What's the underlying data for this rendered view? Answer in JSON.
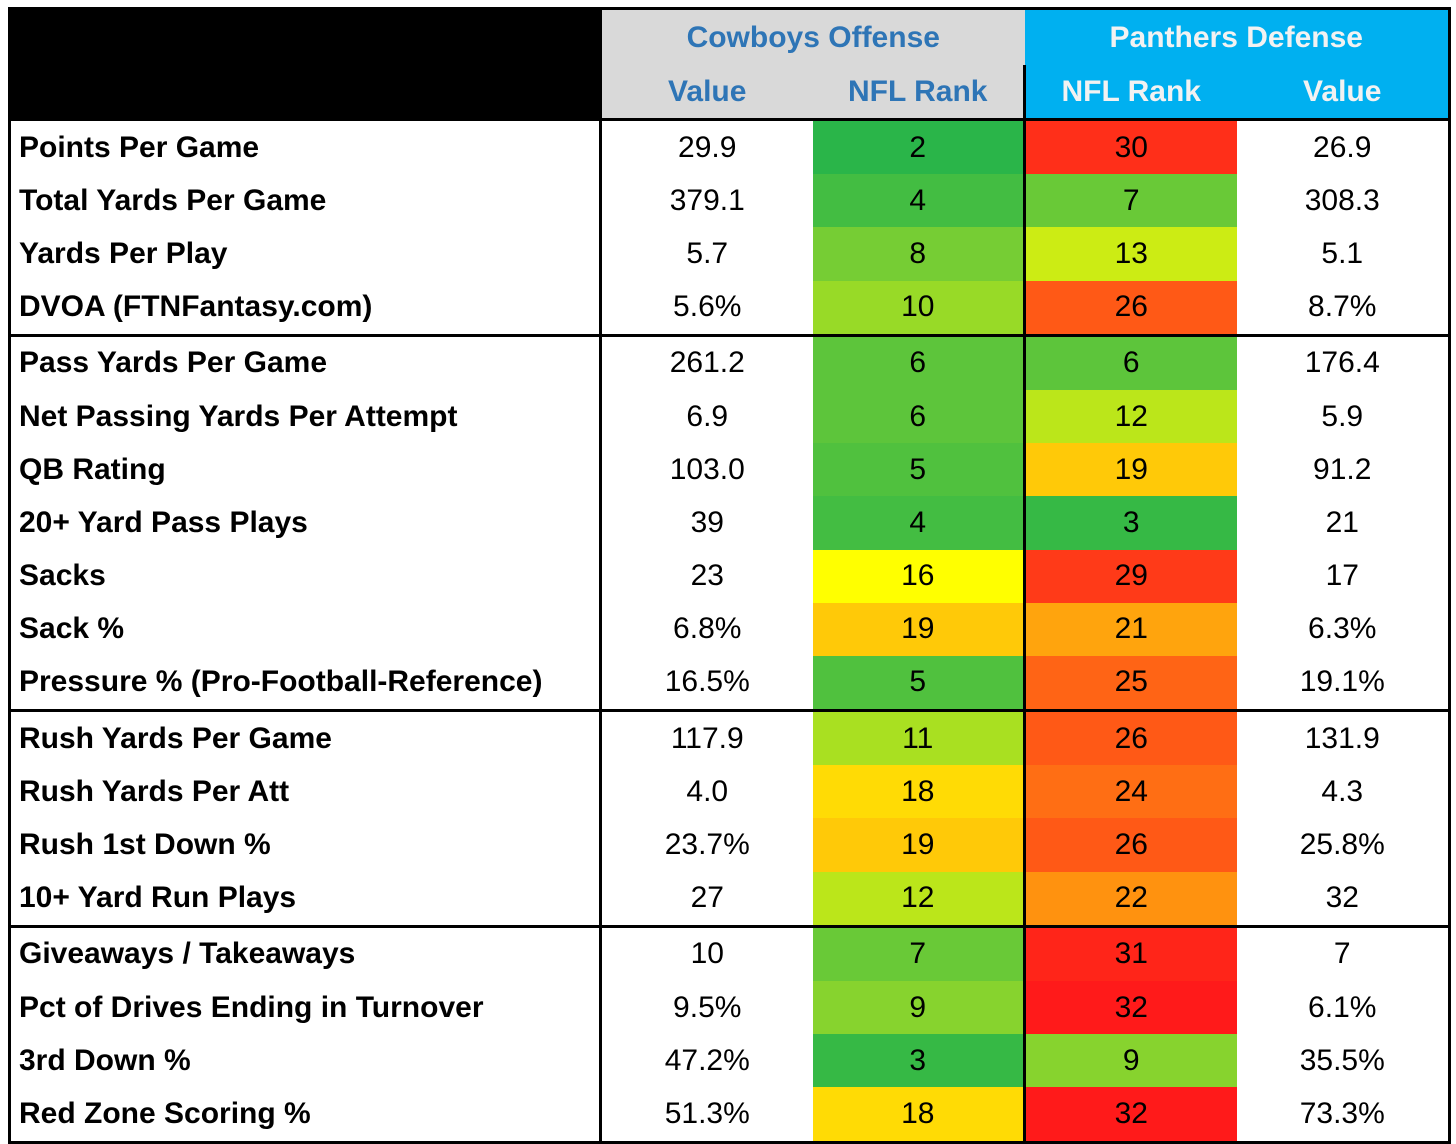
{
  "header": {
    "offense_title": "Cowboys Offense",
    "defense_title": "Panthers Defense",
    "offense_value_label": "Value",
    "offense_rank_label": "NFL Rank",
    "defense_rank_label": "NFL Rank",
    "defense_value_label": "Value"
  },
  "colors": {
    "header_gray": "#d9d9d9",
    "header_cyan": "#00b0f0",
    "header_blue_text": "#2e75b6",
    "rank_scale_best": "#1db14c",
    "rank_scale_mid": "#ffff00",
    "rank_scale_worst": "#ff1a1a"
  },
  "sections": [
    {
      "rows": [
        {
          "stat": "Points Per Game",
          "off_value": "29.9",
          "off_rank": "2",
          "def_rank": "30",
          "def_value": "26.9"
        },
        {
          "stat": "Total Yards Per Game",
          "off_value": "379.1",
          "off_rank": "4",
          "def_rank": "7",
          "def_value": "308.3"
        },
        {
          "stat": "Yards Per Play",
          "off_value": "5.7",
          "off_rank": "8",
          "def_rank": "13",
          "def_value": "5.1"
        },
        {
          "stat": "DVOA (FTNFantasy.com)",
          "off_value": "5.6%",
          "off_rank": "10",
          "def_rank": "26",
          "def_value": "8.7%"
        }
      ]
    },
    {
      "rows": [
        {
          "stat": "Pass Yards Per Game",
          "off_value": "261.2",
          "off_rank": "6",
          "def_rank": "6",
          "def_value": "176.4"
        },
        {
          "stat": "Net Passing Yards Per Attempt",
          "off_value": "6.9",
          "off_rank": "6",
          "def_rank": "12",
          "def_value": "5.9"
        },
        {
          "stat": "QB Rating",
          "off_value": "103.0",
          "off_rank": "5",
          "def_rank": "19",
          "def_value": "91.2"
        },
        {
          "stat": "20+ Yard Pass Plays",
          "off_value": "39",
          "off_rank": "4",
          "def_rank": "3",
          "def_value": "21"
        },
        {
          "stat": "Sacks",
          "off_value": "23",
          "off_rank": "16",
          "def_rank": "29",
          "def_value": "17"
        },
        {
          "stat": "Sack %",
          "off_value": "6.8%",
          "off_rank": "19",
          "def_rank": "21",
          "def_value": "6.3%"
        },
        {
          "stat": "Pressure % (Pro-Football-Reference)",
          "off_value": "16.5%",
          "off_rank": "5",
          "def_rank": "25",
          "def_value": "19.1%"
        }
      ]
    },
    {
      "rows": [
        {
          "stat": "Rush Yards Per Game",
          "off_value": "117.9",
          "off_rank": "11",
          "def_rank": "26",
          "def_value": "131.9"
        },
        {
          "stat": "Rush Yards Per Att",
          "off_value": "4.0",
          "off_rank": "18",
          "def_rank": "24",
          "def_value": "4.3"
        },
        {
          "stat": "Rush 1st Down %",
          "off_value": "23.7%",
          "off_rank": "19",
          "def_rank": "26",
          "def_value": "25.8%"
        },
        {
          "stat": "10+ Yard Run Plays",
          "off_value": "27",
          "off_rank": "12",
          "def_rank": "22",
          "def_value": "32"
        }
      ]
    },
    {
      "rows": [
        {
          "stat": "Giveaways / Takeaways",
          "off_value": "10",
          "off_rank": "7",
          "def_rank": "31",
          "def_value": "7"
        },
        {
          "stat": "Pct of Drives Ending in Turnover",
          "off_value": "9.5%",
          "off_rank": "9",
          "def_rank": "32",
          "def_value": "6.1%"
        },
        {
          "stat": "3rd Down %",
          "off_value": "47.2%",
          "off_rank": "3",
          "def_rank": "9",
          "def_value": "35.5%"
        },
        {
          "stat": "Red Zone Scoring %",
          "off_value": "51.3%",
          "off_rank": "18",
          "def_rank": "32",
          "def_value": "73.3%"
        }
      ]
    }
  ]
}
